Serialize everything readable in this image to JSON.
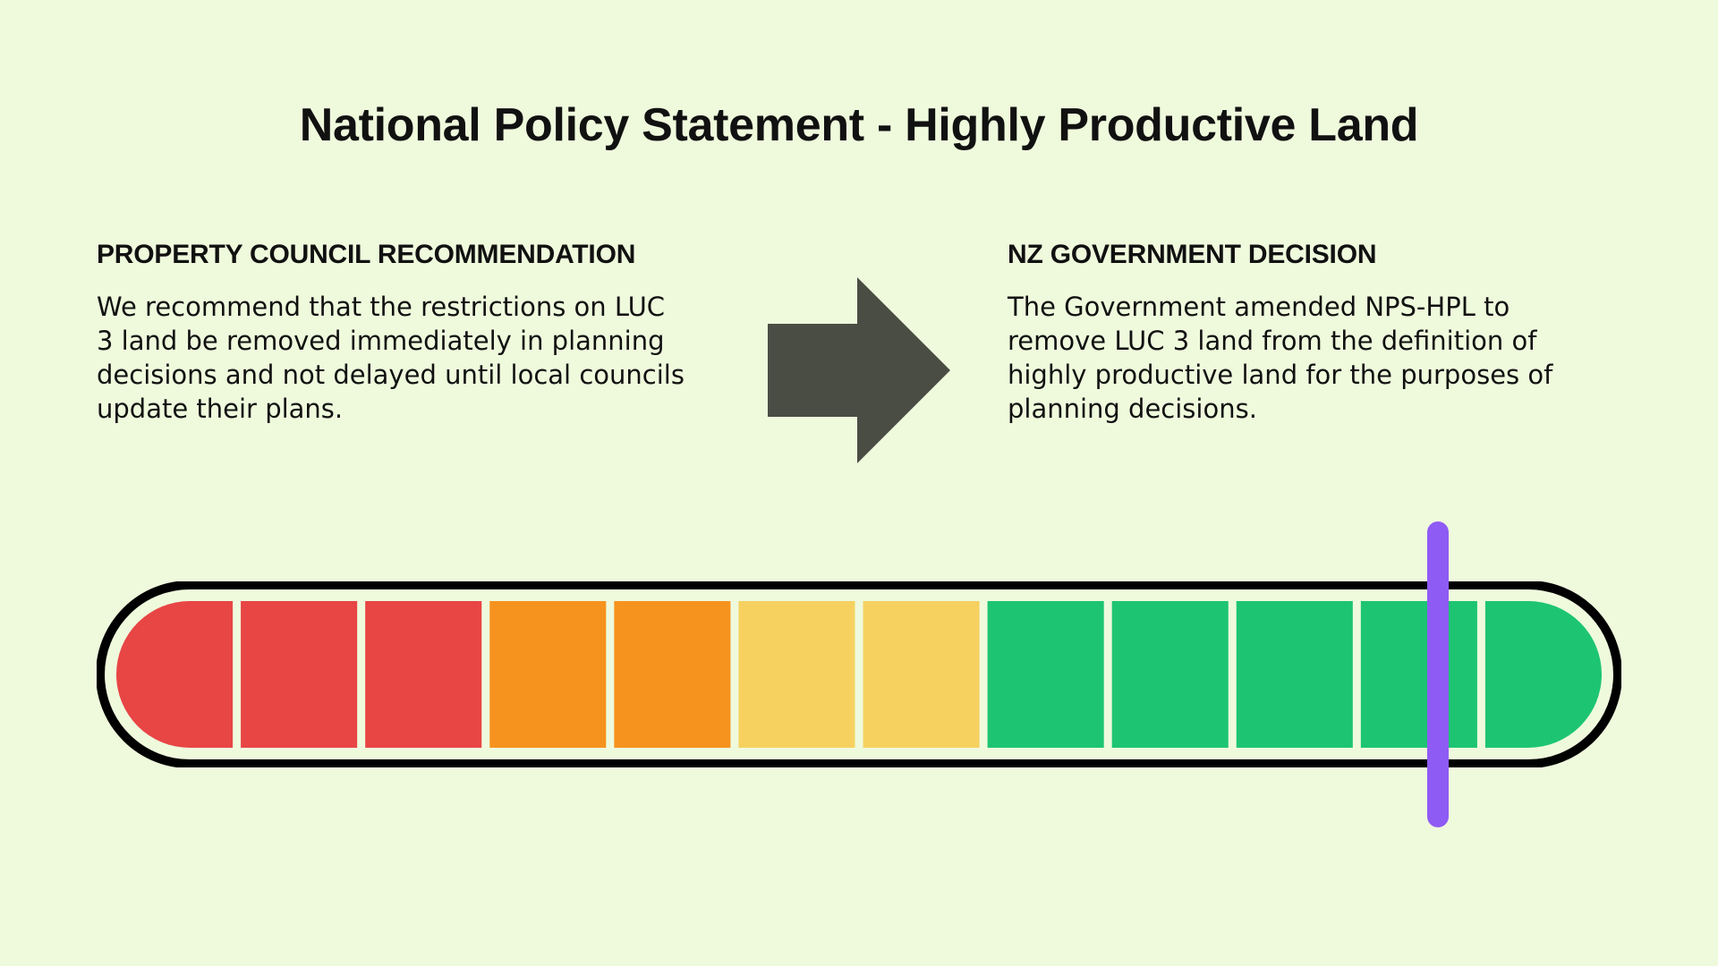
{
  "page": {
    "background": "#effadd",
    "title": "National Policy Statement - Highly Productive Land"
  },
  "left_panel": {
    "heading": "PROPERTY COUNCIL RECOMMENDATION",
    "body": "We recommend that the restrictions on LUC\n3 land be removed immediately in planning\ndecisions and not delayed until local councils\nupdate their plans."
  },
  "right_panel": {
    "heading": "NZ GOVERNMENT DECISION",
    "body": "The Government amended NPS-HPL to\nremove LUC 3 land from the definition of\nhighly productive land for the purposes of\nplanning decisions."
  },
  "arrow": {
    "icon": "right-arrow-icon",
    "color": "#4a4d44"
  },
  "gauge": {
    "segment_count": 12,
    "segment_colors": [
      "#e84545",
      "#e84545",
      "#e84545",
      "#f6931f",
      "#f6931f",
      "#f6d160",
      "#f6d160",
      "#1dc572",
      "#1dc572",
      "#1dc572",
      "#1dc572",
      "#1dc572"
    ],
    "outline_color": "#000000",
    "marker_color": "#8f5bf5",
    "marker_position": 0.89
  }
}
